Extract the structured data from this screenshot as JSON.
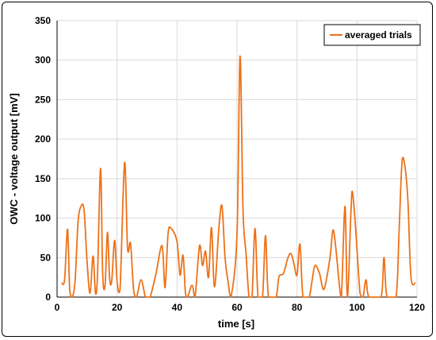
{
  "colors": {
    "series": "#ED7117",
    "grid": "#D9D9D9",
    "axis": "#000000"
  },
  "chart_data": {
    "type": "line",
    "title": "",
    "xlabel": "time [s]",
    "ylabel": "OWC - voltage output [mV]",
    "xlim": [
      0,
      120
    ],
    "ylim": [
      0,
      350
    ],
    "xticks": [
      0,
      20,
      40,
      60,
      80,
      100,
      120
    ],
    "yticks": [
      0,
      50,
      100,
      150,
      200,
      250,
      300,
      350
    ],
    "grid": "vertical and horizontal gridlines",
    "legend": "top-right",
    "series": [
      {
        "name": "averaged trials",
        "points": [
          [
            1.5,
            18
          ],
          [
            2.5,
            22
          ],
          [
            3.5,
            86
          ],
          [
            4.2,
            10
          ],
          [
            5,
            0
          ],
          [
            6,
            20
          ],
          [
            7,
            95
          ],
          [
            8,
            115
          ],
          [
            9,
            110
          ],
          [
            10,
            45
          ],
          [
            11,
            5
          ],
          [
            12,
            52
          ],
          [
            12.8,
            5
          ],
          [
            13.5,
            30
          ],
          [
            14.5,
            163
          ],
          [
            15.2,
            30
          ],
          [
            16,
            15
          ],
          [
            16.8,
            82
          ],
          [
            17.5,
            25
          ],
          [
            18.2,
            20
          ],
          [
            19.2,
            72
          ],
          [
            20,
            20
          ],
          [
            21,
            10
          ],
          [
            22.5,
            170
          ],
          [
            23.5,
            62
          ],
          [
            24.5,
            68
          ],
          [
            25.5,
            10
          ],
          [
            26.5,
            0
          ],
          [
            28,
            22
          ],
          [
            29.5,
            0
          ],
          [
            31,
            0
          ],
          [
            33,
            30
          ],
          [
            35,
            65
          ],
          [
            36,
            12
          ],
          [
            37,
            80
          ],
          [
            38,
            87
          ],
          [
            40,
            70
          ],
          [
            41,
            28
          ],
          [
            42,
            53
          ],
          [
            42.8,
            5
          ],
          [
            43.5,
            0
          ],
          [
            45,
            15
          ],
          [
            46,
            0
          ],
          [
            47.5,
            65
          ],
          [
            48.5,
            40
          ],
          [
            49.5,
            58
          ],
          [
            50.5,
            25
          ],
          [
            51.5,
            88
          ],
          [
            52.5,
            13
          ],
          [
            54,
            90
          ],
          [
            55,
            115
          ],
          [
            56,
            50
          ],
          [
            57,
            20
          ],
          [
            58,
            0
          ],
          [
            60,
            80
          ],
          [
            61,
            305
          ],
          [
            62,
            110
          ],
          [
            63,
            55
          ],
          [
            64,
            0
          ],
          [
            65,
            0
          ],
          [
            66,
            87
          ],
          [
            67,
            0
          ],
          [
            68.5,
            0
          ],
          [
            69.5,
            78
          ],
          [
            70.5,
            0
          ],
          [
            73,
            0
          ],
          [
            74,
            26
          ],
          [
            75.5,
            30
          ],
          [
            77,
            50
          ],
          [
            78,
            55
          ],
          [
            79,
            42
          ],
          [
            80,
            28
          ],
          [
            81,
            67
          ],
          [
            82,
            0
          ],
          [
            84,
            0
          ],
          [
            85,
            20
          ],
          [
            86,
            40
          ],
          [
            87.5,
            30
          ],
          [
            89,
            10
          ],
          [
            91,
            50
          ],
          [
            92,
            85
          ],
          [
            93,
            60
          ],
          [
            94,
            20
          ],
          [
            94.8,
            0
          ],
          [
            96,
            115
          ],
          [
            96.8,
            0
          ],
          [
            98,
            110
          ],
          [
            98.5,
            133
          ],
          [
            99.5,
            90
          ],
          [
            101,
            5
          ],
          [
            102,
            0
          ],
          [
            103,
            22
          ],
          [
            104,
            0
          ],
          [
            108,
            0
          ],
          [
            109,
            50
          ],
          [
            110,
            0
          ],
          [
            113,
            0
          ],
          [
            114,
            80
          ],
          [
            115,
            170
          ],
          [
            116,
            165
          ],
          [
            117,
            120
          ],
          [
            118,
            25
          ],
          [
            119.5,
            18
          ]
        ]
      }
    ]
  }
}
